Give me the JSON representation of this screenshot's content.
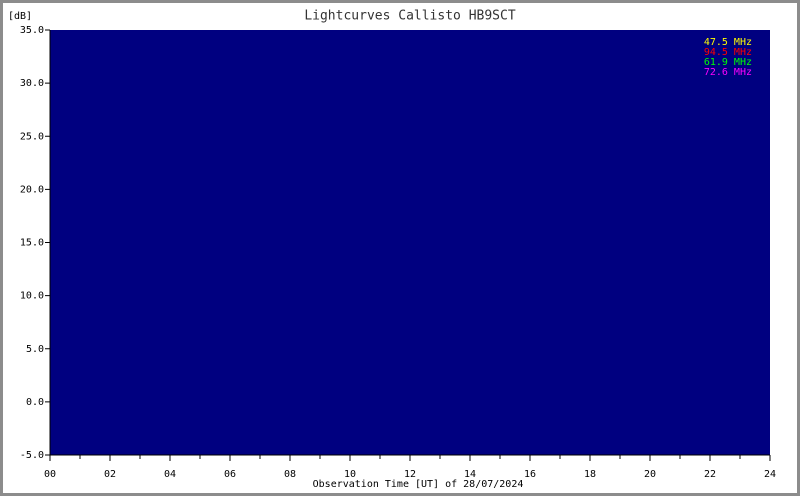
{
  "chart_data": {
    "type": "line",
    "title": "Lightcurves Callisto HB9SCT",
    "y_label": "[dB]",
    "x_label": "Observation Time [UT] of 28/07/2024",
    "plot_background": "#000080",
    "series": [
      {
        "name": "47.5 MHz",
        "color": "#ffff00"
      },
      {
        "name": "94.5 MHz",
        "color": "#ff0000"
      },
      {
        "name": "61.9 MHz",
        "color": "#00ff00"
      },
      {
        "name": "72.6 MHz",
        "color": "#ff00ff"
      }
    ],
    "legend": "top-right",
    "xlim": [
      0,
      24
    ],
    "xticks": [
      {
        "value": 0,
        "label": "00"
      },
      {
        "value": 2,
        "label": "02"
      },
      {
        "value": 4,
        "label": "04"
      },
      {
        "value": 6,
        "label": "06"
      },
      {
        "value": 8,
        "label": "08"
      },
      {
        "value": 10,
        "label": "10"
      },
      {
        "value": 12,
        "label": "12"
      },
      {
        "value": 14,
        "label": "14"
      },
      {
        "value": 16,
        "label": "16"
      },
      {
        "value": 18,
        "label": "18"
      },
      {
        "value": 20,
        "label": "20"
      },
      {
        "value": 22,
        "label": "22"
      },
      {
        "value": 24,
        "label": "24"
      }
    ],
    "xminorticks": [
      1,
      3,
      5,
      7,
      9,
      11,
      13,
      15,
      17,
      19,
      21,
      23
    ],
    "ylim": [
      -5,
      35
    ],
    "yticks": [
      {
        "value": -5,
        "label": "-5.0"
      },
      {
        "value": 0,
        "label": "0.0"
      },
      {
        "value": 5,
        "label": "5.0"
      },
      {
        "value": 10,
        "label": "10.0"
      },
      {
        "value": 15,
        "label": "15.0"
      },
      {
        "value": 20,
        "label": "20.0"
      },
      {
        "value": 25,
        "label": "25.0"
      },
      {
        "value": 30,
        "label": "30.0"
      },
      {
        "value": 35,
        "label": "35.0"
      }
    ]
  }
}
